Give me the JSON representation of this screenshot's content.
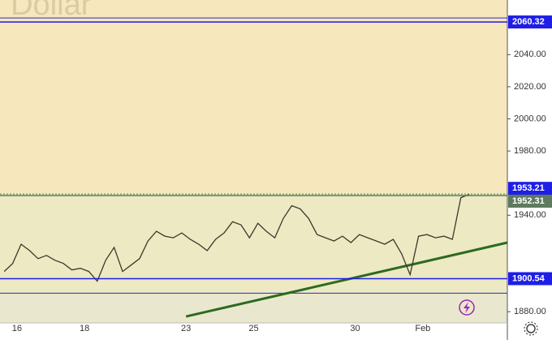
{
  "chart_data": {
    "type": "line",
    "watermark": ". Dollar",
    "categories": [
      null,
      null,
      "16",
      null,
      null,
      null,
      null,
      null,
      null,
      null,
      "18",
      null,
      null,
      null,
      null,
      null,
      null,
      null,
      null,
      null,
      null,
      null,
      "23",
      null,
      null,
      null,
      null,
      null,
      null,
      null,
      "25",
      null,
      null,
      null,
      null,
      null,
      null,
      null,
      null,
      null,
      null,
      null,
      "30",
      null,
      null,
      null,
      null,
      null,
      null,
      null,
      "Feb",
      null,
      null,
      null,
      null,
      null,
      null,
      null,
      null,
      null
    ],
    "values": [
      1905,
      1910,
      1922,
      1918,
      1913,
      1915,
      1912,
      1910,
      1906,
      1907,
      1905,
      1899,
      1912,
      1920,
      1905,
      1909,
      1913,
      1924,
      1930,
      1927,
      1926,
      1929,
      1925,
      1922,
      1918,
      1925,
      1929,
      1936,
      1934,
      1926,
      1935,
      1930,
      1926,
      1938,
      1946,
      1944,
      1938,
      1928,
      1926,
      1924,
      1927,
      1923,
      1928,
      1926,
      1924,
      1922,
      1925,
      1916,
      1903,
      1927,
      1928,
      1926,
      1927,
      1925,
      1951,
      1953,
      null,
      null,
      null,
      null
    ],
    "color": "#3a3a2a",
    "ylim": [
      1873,
      2074
    ],
    "yticks": [
      {
        "value": 1880,
        "label": "1880.00"
      },
      {
        "value": 1940,
        "label": "1940.00"
      },
      {
        "value": 1980,
        "label": "1980.00"
      },
      {
        "value": 2000,
        "label": "2000.00"
      },
      {
        "value": 2020,
        "label": "2020.00"
      },
      {
        "value": 2040,
        "label": "2040.00"
      }
    ],
    "levels": [
      {
        "value": 2060.32,
        "color": "#1e1ee6"
      },
      {
        "value": 1953.21,
        "color": "#1e1ee6"
      },
      {
        "value": 1952.31,
        "color": "#5e7a5e"
      },
      {
        "value": 1900.54,
        "color": "#1e1ee6"
      }
    ],
    "extra_levels": [
      2062.8,
      1891.5
    ],
    "trendline": {
      "values": [
        1877,
        1923
      ],
      "color": "#2d6a1e"
    }
  }
}
